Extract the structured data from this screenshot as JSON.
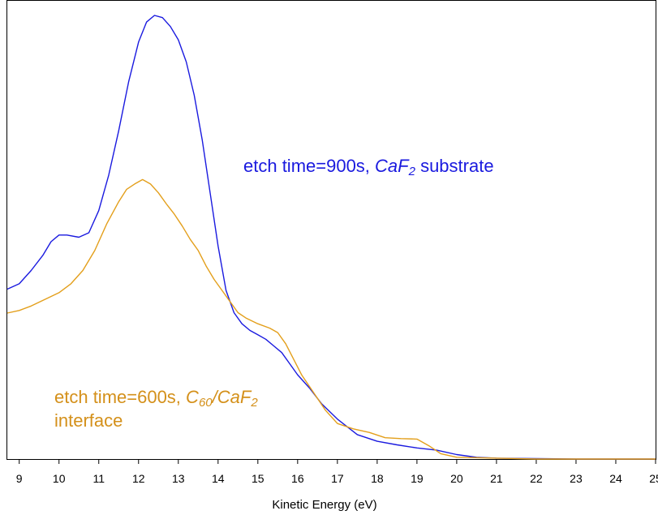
{
  "chart_data": {
    "type": "line",
    "title": "",
    "xlabel": "Kinetic Energy (eV)",
    "ylabel": "",
    "xlim": [
      8.7,
      25
    ],
    "ylim": [
      0,
      1
    ],
    "x_ticks": [
      "9",
      "10",
      "11",
      "12",
      "13",
      "14",
      "15",
      "16",
      "17",
      "18",
      "19",
      "20",
      "21",
      "22",
      "23",
      "24",
      "25"
    ],
    "grid": false,
    "series": [
      {
        "name": "etch time=900s, CaF2 substrate",
        "color": "#1a1adf",
        "points": [
          [
            8.7,
            0.383
          ],
          [
            9.0,
            0.395
          ],
          [
            9.3,
            0.425
          ],
          [
            9.6,
            0.46
          ],
          [
            9.8,
            0.49
          ],
          [
            10.0,
            0.505
          ],
          [
            10.2,
            0.505
          ],
          [
            10.5,
            0.5
          ],
          [
            10.75,
            0.51
          ],
          [
            11.0,
            0.56
          ],
          [
            11.25,
            0.64
          ],
          [
            11.5,
            0.74
          ],
          [
            11.75,
            0.85
          ],
          [
            12.0,
            0.94
          ],
          [
            12.2,
            0.985
          ],
          [
            12.4,
            1.0
          ],
          [
            12.6,
            0.995
          ],
          [
            12.8,
            0.975
          ],
          [
            13.0,
            0.945
          ],
          [
            13.2,
            0.895
          ],
          [
            13.4,
            0.82
          ],
          [
            13.6,
            0.72
          ],
          [
            13.8,
            0.6
          ],
          [
            14.0,
            0.48
          ],
          [
            14.2,
            0.38
          ],
          [
            14.4,
            0.33
          ],
          [
            14.6,
            0.305
          ],
          [
            14.8,
            0.29
          ],
          [
            15.0,
            0.28
          ],
          [
            15.2,
            0.27
          ],
          [
            15.4,
            0.255
          ],
          [
            15.6,
            0.24
          ],
          [
            15.8,
            0.215
          ],
          [
            16.0,
            0.19
          ],
          [
            16.3,
            0.16
          ],
          [
            16.6,
            0.125
          ],
          [
            17.0,
            0.09
          ],
          [
            17.5,
            0.055
          ],
          [
            18.0,
            0.04
          ],
          [
            18.5,
            0.032
          ],
          [
            19.0,
            0.025
          ],
          [
            19.5,
            0.02
          ],
          [
            20.0,
            0.01
          ],
          [
            20.5,
            0.004
          ],
          [
            21.0,
            0.002
          ],
          [
            22.0,
            0.001
          ],
          [
            23.0,
            0.0
          ],
          [
            25.0,
            0.0
          ]
        ]
      },
      {
        "name": "etch time=600s, C60/CaF2 interface",
        "color": "#e39f1b",
        "points": [
          [
            8.7,
            0.329
          ],
          [
            9.0,
            0.335
          ],
          [
            9.3,
            0.345
          ],
          [
            9.6,
            0.358
          ],
          [
            10.0,
            0.375
          ],
          [
            10.3,
            0.395
          ],
          [
            10.6,
            0.425
          ],
          [
            10.9,
            0.47
          ],
          [
            11.2,
            0.53
          ],
          [
            11.5,
            0.58
          ],
          [
            11.7,
            0.608
          ],
          [
            11.9,
            0.62
          ],
          [
            12.1,
            0.63
          ],
          [
            12.3,
            0.62
          ],
          [
            12.5,
            0.6
          ],
          [
            12.7,
            0.575
          ],
          [
            12.9,
            0.552
          ],
          [
            13.1,
            0.525
          ],
          [
            13.3,
            0.495
          ],
          [
            13.5,
            0.47
          ],
          [
            13.7,
            0.435
          ],
          [
            13.9,
            0.405
          ],
          [
            14.1,
            0.38
          ],
          [
            14.3,
            0.355
          ],
          [
            14.5,
            0.33
          ],
          [
            14.7,
            0.318
          ],
          [
            15.0,
            0.305
          ],
          [
            15.3,
            0.295
          ],
          [
            15.5,
            0.285
          ],
          [
            15.7,
            0.26
          ],
          [
            15.9,
            0.225
          ],
          [
            16.1,
            0.19
          ],
          [
            16.4,
            0.15
          ],
          [
            16.7,
            0.11
          ],
          [
            17.0,
            0.08
          ],
          [
            17.4,
            0.068
          ],
          [
            17.8,
            0.06
          ],
          [
            18.2,
            0.048
          ],
          [
            18.6,
            0.046
          ],
          [
            19.0,
            0.045
          ],
          [
            19.3,
            0.03
          ],
          [
            19.6,
            0.012
          ],
          [
            20.0,
            0.004
          ],
          [
            21.0,
            0.002
          ],
          [
            22.0,
            0.0
          ],
          [
            25.0,
            0.0
          ]
        ]
      }
    ],
    "annotations": [
      {
        "color": "#1a1adf",
        "parts": [
          [
            "etch time=900s, ",
            false,
            false
          ],
          [
            "CaF",
            true,
            false
          ],
          [
            "2",
            true,
            true
          ],
          [
            " substrate",
            false,
            false
          ]
        ]
      },
      {
        "color": "#d4901a",
        "parts": [
          [
            "etch time=600s, ",
            false,
            false
          ],
          [
            "C",
            true,
            false
          ],
          [
            "60",
            true,
            true
          ],
          [
            "/CaF",
            true,
            false
          ],
          [
            "2",
            true,
            true
          ]
        ],
        "line2": "interface"
      }
    ]
  }
}
